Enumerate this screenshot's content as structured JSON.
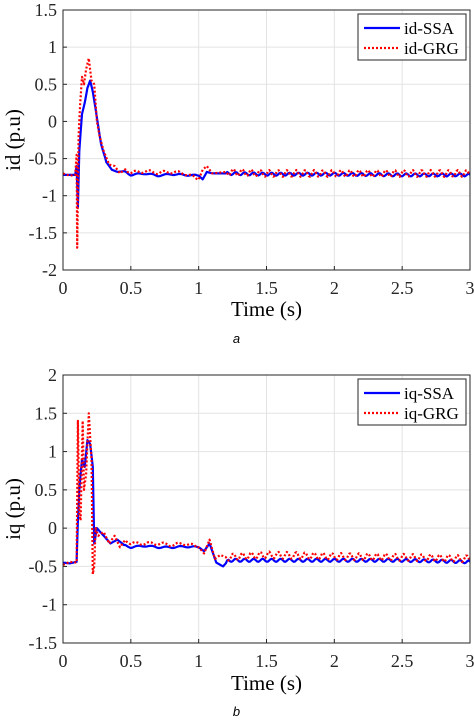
{
  "chart_data": [
    {
      "type": "line",
      "caption": "a",
      "xlabel": "Time (s)",
      "ylabel": "id (p.u)",
      "xlim": [
        0,
        3
      ],
      "ylim": [
        -2,
        1.5
      ],
      "xticks": [
        "0",
        "0.5",
        "1",
        "1.5",
        "2",
        "2.5",
        "3"
      ],
      "yticks": [
        "1.5",
        "1",
        "0.5",
        "0",
        "-0.5",
        "-1",
        "-1.5",
        "-2"
      ],
      "grid": true,
      "legend_position": "top-right",
      "series": [
        {
          "name": "id-SSA",
          "color": "#0000ff",
          "style": "solid",
          "points": [
            [
              0,
              -0.72
            ],
            [
              0.05,
              -0.72
            ],
            [
              0.09,
              -0.72
            ],
            [
              0.1,
              -0.6
            ],
            [
              0.11,
              -1.15
            ],
            [
              0.12,
              -0.4
            ],
            [
              0.14,
              0.1
            ],
            [
              0.16,
              0.25
            ],
            [
              0.18,
              0.45
            ],
            [
              0.2,
              0.55
            ],
            [
              0.22,
              0.4
            ],
            [
              0.25,
              0.05
            ],
            [
              0.28,
              -0.3
            ],
            [
              0.32,
              -0.55
            ],
            [
              0.36,
              -0.65
            ],
            [
              0.4,
              -0.68
            ],
            [
              0.45,
              -0.67
            ],
            [
              0.5,
              -0.72
            ],
            [
              0.6,
              -0.7
            ],
            [
              0.7,
              -0.73
            ],
            [
              0.8,
              -0.71
            ],
            [
              0.9,
              -0.72
            ],
            [
              1.0,
              -0.73
            ],
            [
              1.03,
              -0.78
            ],
            [
              1.06,
              -0.68
            ],
            [
              1.1,
              -0.7
            ],
            [
              1.2,
              -0.7
            ],
            [
              1.5,
              -0.71
            ],
            [
              2.0,
              -0.71
            ],
            [
              2.5,
              -0.72
            ],
            [
              3.0,
              -0.72
            ]
          ]
        },
        {
          "name": "id-GRG",
          "color": "#ff0000",
          "style": "dotted",
          "points": [
            [
              0,
              -0.7
            ],
            [
              0.05,
              -0.73
            ],
            [
              0.09,
              -0.72
            ],
            [
              0.1,
              -0.45
            ],
            [
              0.105,
              -1.7
            ],
            [
              0.115,
              -0.2
            ],
            [
              0.125,
              0.2
            ],
            [
              0.14,
              0.6
            ],
            [
              0.155,
              0.5
            ],
            [
              0.17,
              0.7
            ],
            [
              0.19,
              0.85
            ],
            [
              0.21,
              0.55
            ],
            [
              0.23,
              0.5
            ],
            [
              0.25,
              0.0
            ],
            [
              0.27,
              -0.2
            ],
            [
              0.3,
              -0.4
            ],
            [
              0.34,
              -0.58
            ],
            [
              0.38,
              -0.6
            ],
            [
              0.42,
              -0.7
            ],
            [
              0.46,
              -0.64
            ],
            [
              0.5,
              -0.69
            ],
            [
              0.6,
              -0.67
            ],
            [
              0.7,
              -0.69
            ],
            [
              0.8,
              -0.68
            ],
            [
              0.9,
              -0.7
            ],
            [
              1.0,
              -0.78
            ],
            [
              1.03,
              -0.65
            ],
            [
              1.06,
              -0.6
            ],
            [
              1.1,
              -0.7
            ],
            [
              1.2,
              -0.68
            ],
            [
              1.5,
              -0.7
            ],
            [
              2.0,
              -0.7
            ],
            [
              2.5,
              -0.7
            ],
            [
              3.0,
              -0.7
            ]
          ]
        }
      ]
    },
    {
      "type": "line",
      "caption": "b",
      "xlabel": "Time (s)",
      "ylabel": "iq (p.u)",
      "xlim": [
        0,
        3
      ],
      "ylim": [
        -1.5,
        2
      ],
      "xticks": [
        "0",
        "0.5",
        "1",
        "1.5",
        "2",
        "2.5",
        "3"
      ],
      "yticks": [
        "2",
        "1.5",
        "1",
        "0.5",
        "0",
        "-0.5",
        "-1",
        "-1.5"
      ],
      "grid": true,
      "legend_position": "top-right",
      "series": [
        {
          "name": "iq-SSA",
          "color": "#0000ff",
          "style": "solid",
          "points": [
            [
              0,
              -0.45
            ],
            [
              0.05,
              -0.46
            ],
            [
              0.1,
              -0.44
            ],
            [
              0.11,
              0.1
            ],
            [
              0.12,
              0.5
            ],
            [
              0.14,
              0.9
            ],
            [
              0.16,
              0.8
            ],
            [
              0.18,
              1.15
            ],
            [
              0.2,
              1.1
            ],
            [
              0.22,
              0.8
            ],
            [
              0.23,
              -0.2
            ],
            [
              0.25,
              0.0
            ],
            [
              0.3,
              -0.1
            ],
            [
              0.35,
              -0.2
            ],
            [
              0.4,
              -0.15
            ],
            [
              0.45,
              -0.22
            ],
            [
              0.5,
              -0.25
            ],
            [
              0.6,
              -0.23
            ],
            [
              0.7,
              -0.25
            ],
            [
              0.8,
              -0.25
            ],
            [
              0.9,
              -0.24
            ],
            [
              1.0,
              -0.25
            ],
            [
              1.04,
              -0.3
            ],
            [
              1.08,
              -0.2
            ],
            [
              1.13,
              -0.45
            ],
            [
              1.18,
              -0.5
            ],
            [
              1.22,
              -0.42
            ],
            [
              1.5,
              -0.42
            ],
            [
              2.0,
              -0.42
            ],
            [
              2.5,
              -0.42
            ],
            [
              3.0,
              -0.44
            ]
          ]
        },
        {
          "name": "iq-GRG",
          "color": "#ff0000",
          "style": "dotted",
          "points": [
            [
              0,
              -0.48
            ],
            [
              0.05,
              -0.44
            ],
            [
              0.1,
              -0.45
            ],
            [
              0.11,
              1.4
            ],
            [
              0.12,
              0.2
            ],
            [
              0.13,
              0.1
            ],
            [
              0.145,
              1.4
            ],
            [
              0.155,
              0.5
            ],
            [
              0.17,
              0.7
            ],
            [
              0.19,
              1.5
            ],
            [
              0.21,
              0.9
            ],
            [
              0.22,
              -0.6
            ],
            [
              0.23,
              -0.5
            ],
            [
              0.24,
              0.0
            ],
            [
              0.26,
              -0.1
            ],
            [
              0.3,
              -0.05
            ],
            [
              0.34,
              -0.2
            ],
            [
              0.38,
              -0.1
            ],
            [
              0.42,
              -0.25
            ],
            [
              0.46,
              -0.15
            ],
            [
              0.5,
              -0.2
            ],
            [
              0.6,
              -0.2
            ],
            [
              0.7,
              -0.2
            ],
            [
              0.8,
              -0.22
            ],
            [
              0.9,
              -0.2
            ],
            [
              1.0,
              -0.25
            ],
            [
              1.04,
              -0.33
            ],
            [
              1.08,
              -0.15
            ],
            [
              1.12,
              -0.4
            ],
            [
              1.16,
              -0.35
            ],
            [
              1.2,
              -0.38
            ],
            [
              1.5,
              -0.35
            ],
            [
              2.0,
              -0.37
            ],
            [
              2.5,
              -0.38
            ],
            [
              3.0,
              -0.4
            ]
          ]
        }
      ]
    }
  ]
}
